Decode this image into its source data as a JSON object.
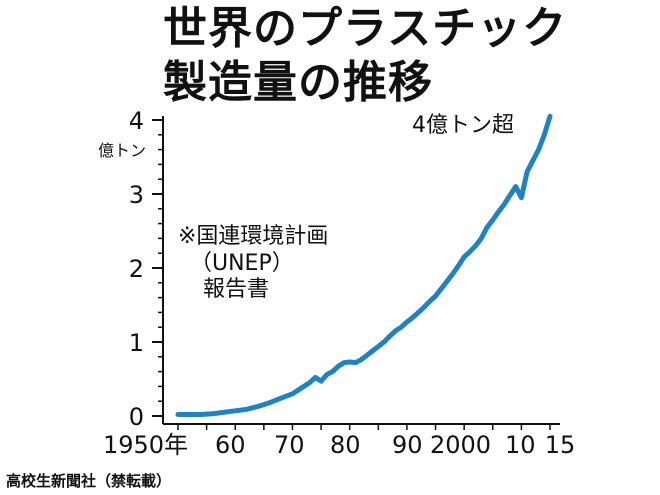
{
  "title_lines": [
    "世界のプラスチック",
    "製造量の推移"
  ],
  "footer": "高校生新聞社（禁転載）",
  "colors": {
    "line": "#1f82c4",
    "text": "#111111"
  },
  "chart_data": {
    "type": "line",
    "title": "世界のプラスチック製造量の推移",
    "ylabel": "億トン",
    "xlabel": "",
    "ylim": [
      0,
      4
    ],
    "xlim": [
      1950,
      2015
    ],
    "yticks": [
      0,
      1,
      2,
      3,
      4
    ],
    "x_tick_labels": [
      {
        "x": 1950,
        "label": "1950年"
      },
      {
        "x": 1960,
        "label": "60"
      },
      {
        "x": 1970,
        "label": "70"
      },
      {
        "x": 1980,
        "label": "80"
      },
      {
        "x": 1990,
        "label": "90"
      },
      {
        "x": 2000,
        "label": "2000"
      },
      {
        "x": 2010,
        "label": "10"
      },
      {
        "x": 2015,
        "label": "15"
      }
    ],
    "annotations": [
      {
        "text": "4億トン超"
      },
      {
        "text": "※国連環境計画"
      },
      {
        "text": "（UNEP）"
      },
      {
        "text": "報告書"
      }
    ],
    "series": [
      {
        "x": [
          1950,
          1952,
          1954,
          1956,
          1958,
          1960,
          1962,
          1964,
          1966,
          1968,
          1970,
          1971,
          1972,
          1973,
          1974,
          1975,
          1976,
          1977,
          1978,
          1979,
          1980,
          1981,
          1982,
          1983,
          1984,
          1985,
          1986,
          1987,
          1988,
          1989,
          1990,
          1991,
          1992,
          1993,
          1994,
          1995,
          1996,
          1997,
          1998,
          1999,
          2000,
          2001,
          2002,
          2003,
          2004,
          2005,
          2006,
          2007,
          2008,
          2009,
          2010,
          2011,
          2012,
          2013,
          2014,
          2015
        ],
        "y": [
          0.02,
          0.02,
          0.02,
          0.03,
          0.05,
          0.07,
          0.09,
          0.13,
          0.18,
          0.24,
          0.3,
          0.35,
          0.4,
          0.45,
          0.52,
          0.47,
          0.56,
          0.6,
          0.67,
          0.72,
          0.73,
          0.72,
          0.76,
          0.82,
          0.88,
          0.94,
          1.0,
          1.08,
          1.15,
          1.2,
          1.27,
          1.33,
          1.4,
          1.47,
          1.55,
          1.62,
          1.72,
          1.82,
          1.92,
          2.03,
          2.15,
          2.22,
          2.3,
          2.4,
          2.55,
          2.65,
          2.76,
          2.86,
          2.98,
          3.1,
          2.95,
          3.3,
          3.45,
          3.6,
          3.8,
          4.05
        ]
      }
    ]
  }
}
